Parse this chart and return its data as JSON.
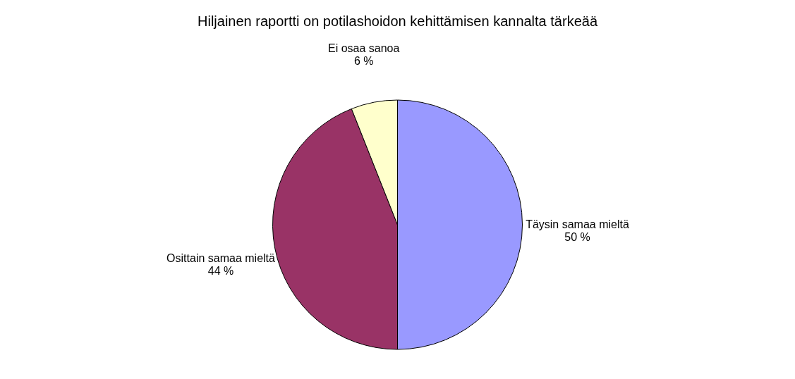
{
  "chart_data": {
    "type": "pie",
    "title": "Hiljainen raportti on potilashoidon kehittämisen kannalta tärkeää",
    "categories": [
      "Täysin samaa mieltä",
      "Osittain samaa mieltä",
      "Ei osaa sanoa"
    ],
    "values": [
      50,
      44,
      6
    ],
    "colors": [
      "#9999ff",
      "#993366",
      "#ffffcc"
    ],
    "value_labels": [
      "50 %",
      "44 %",
      "6 %"
    ],
    "legend": false
  }
}
